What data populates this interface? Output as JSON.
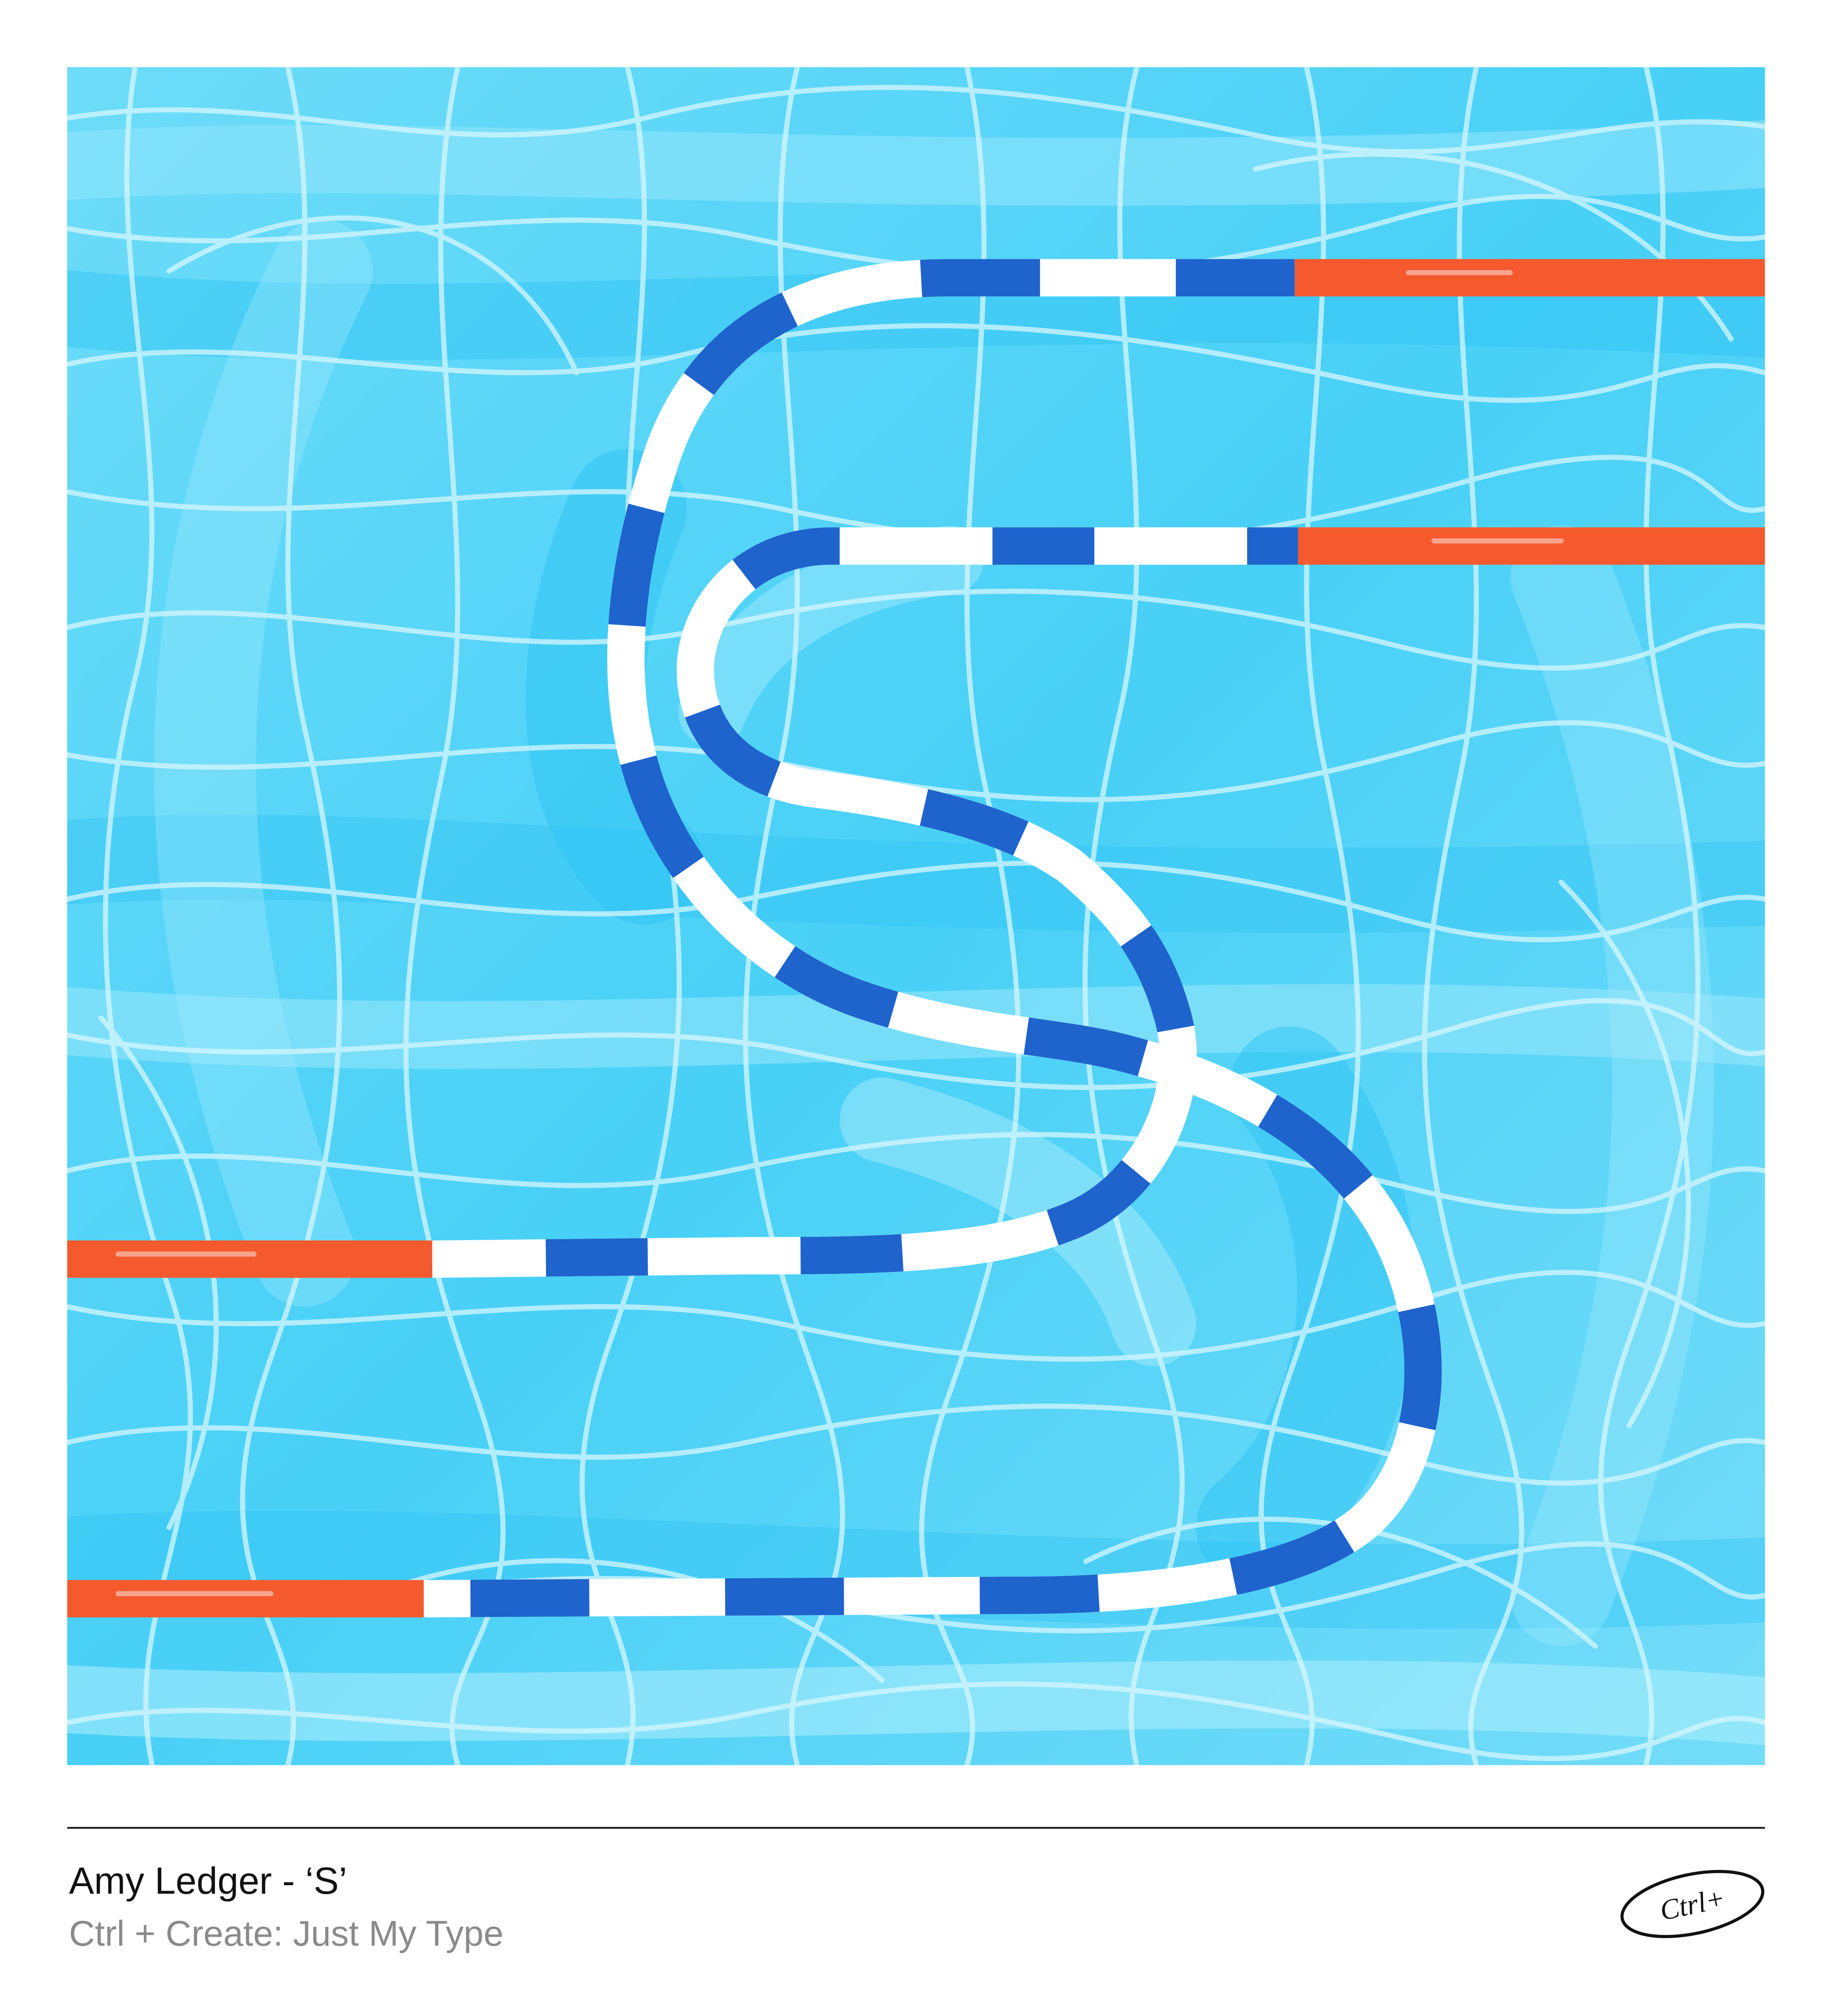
{
  "artwork": {
    "subject": "lane-rope-letter-s",
    "colors": {
      "water_base": "#5fd6f7",
      "water_deep": "#32c8f6",
      "water_light": "#9ae8fb",
      "ripple": "#d6f7ff",
      "float_blue": "#1f63cc",
      "float_white": "#ffffff",
      "float_red": "#f45a2e"
    }
  },
  "caption": {
    "title": "Amy Ledger - ‘S’",
    "subtitle": "Ctrl + Create: Just My Type"
  },
  "logo": {
    "text": "Ctrl+"
  }
}
